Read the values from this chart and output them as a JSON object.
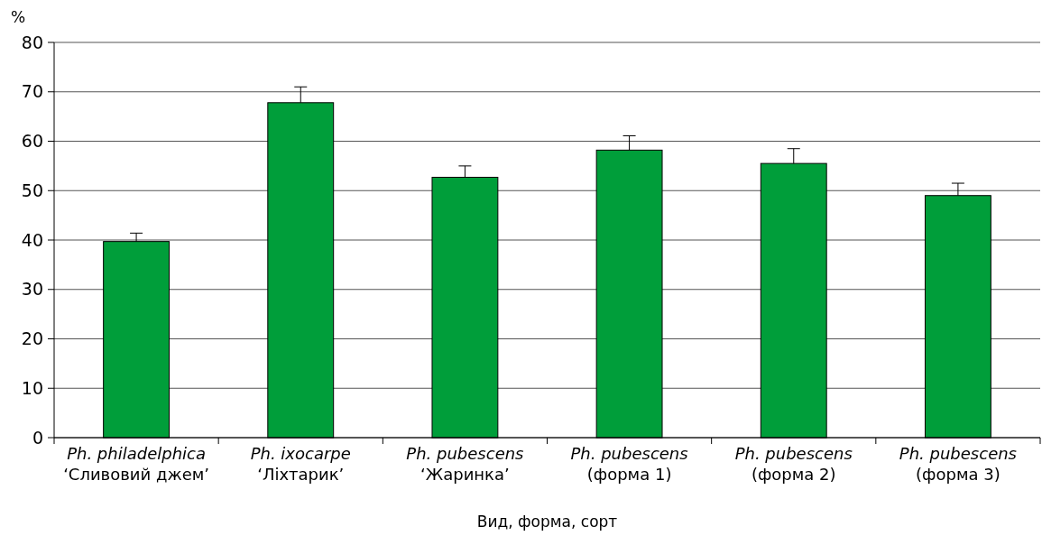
{
  "chart_data": {
    "type": "bar",
    "xlabel": "Вид, форма, сорт",
    "ylabel": "%",
    "categories": [
      "Ph. philadelphica\n‘Сливовий джем’",
      "Ph. ixocarpe\n‘Ліхтарик’",
      "Ph. pubescens\n‘Жаринка’",
      "Ph. pubescens\n(форма 1)",
      "Ph. pubescens\n(форма 2)",
      "Ph. pubescens\n(форма 3)"
    ],
    "values": [
      39.7,
      67.8,
      52.7,
      58.2,
      55.5,
      49.0
    ],
    "errors": [
      1.7,
      3.2,
      2.3,
      2.9,
      3.0,
      2.5
    ],
    "color": "#009e3a",
    "ylim": [
      0,
      80
    ],
    "yticks": [
      0,
      10,
      20,
      30,
      40,
      50,
      60,
      70,
      80
    ],
    "grid": "y"
  }
}
